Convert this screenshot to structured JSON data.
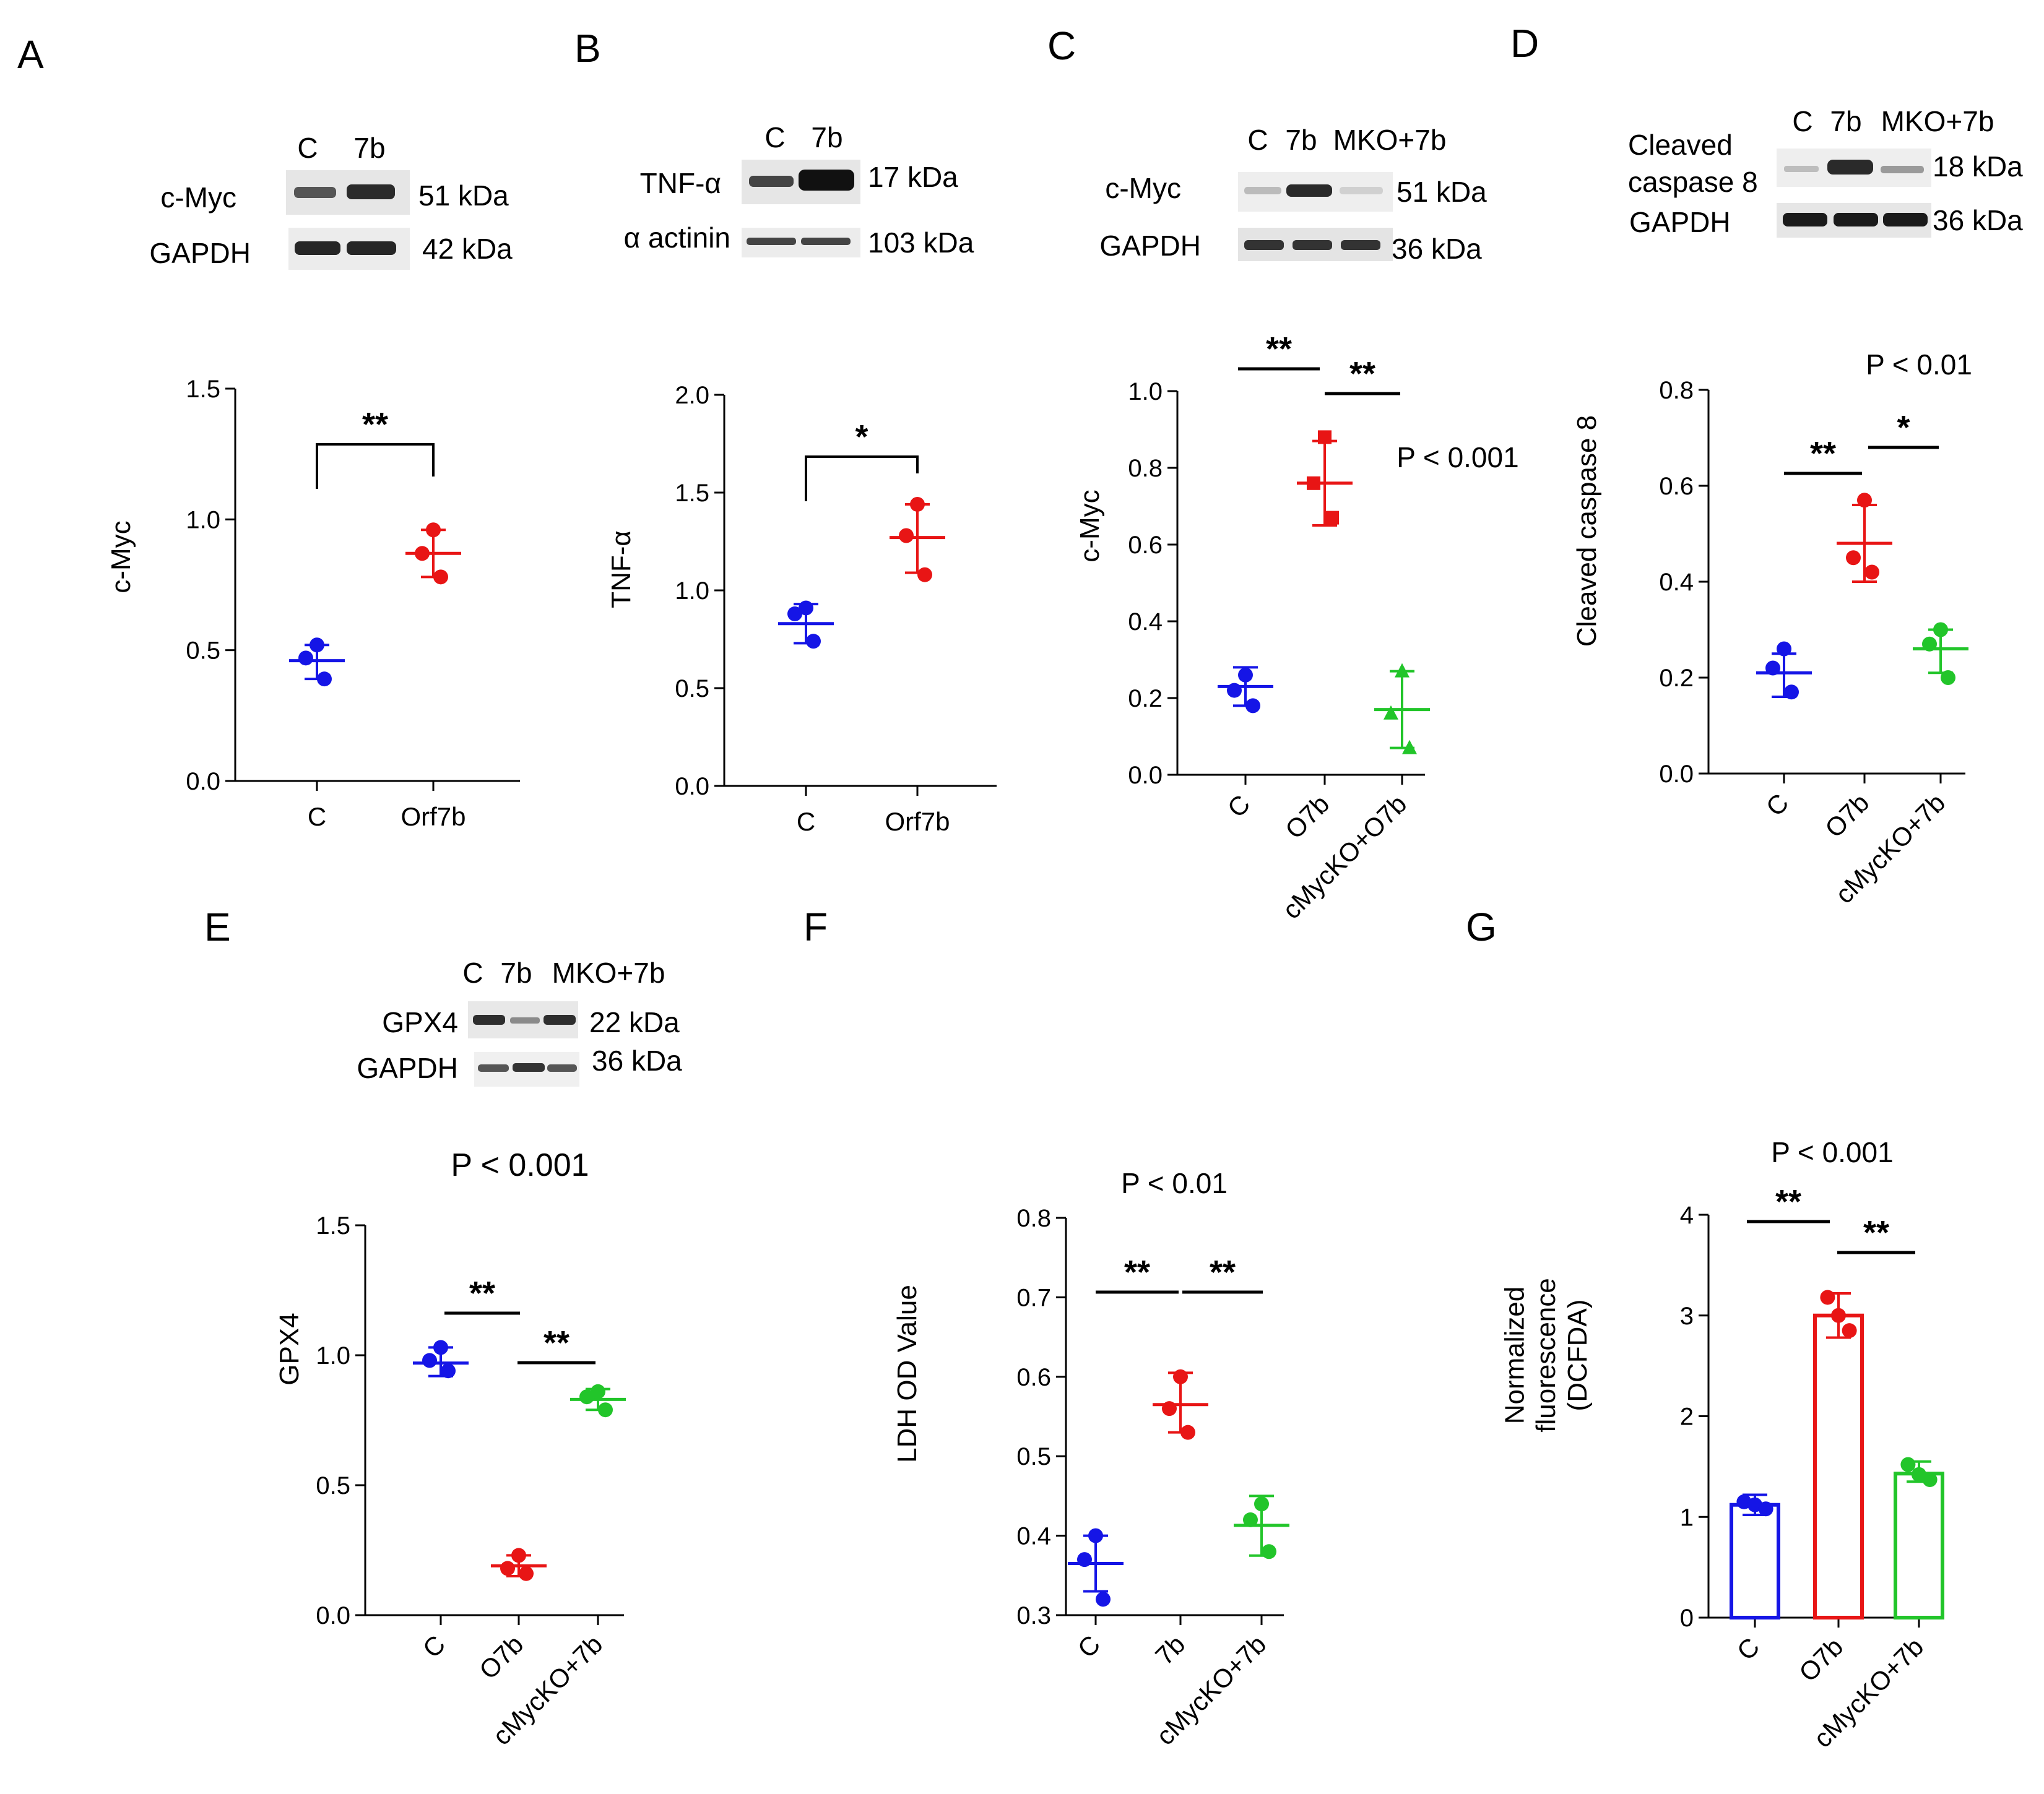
{
  "colors": {
    "C": "#1515e6",
    "Orf7b": "#e81515",
    "KO": "#22c52a",
    "axis": "#000000"
  },
  "panel_labels": [
    "A",
    "B",
    "C",
    "D",
    "E",
    "F",
    "G"
  ],
  "blots": {
    "A": {
      "lanes": [
        "C",
        "7b"
      ],
      "rows": [
        {
          "protein": "c-Myc",
          "kda": "51 kDa"
        },
        {
          "protein": "GAPDH",
          "kda": "42 kDa"
        }
      ]
    },
    "B": {
      "lanes": [
        "C",
        "7b"
      ],
      "rows": [
        {
          "protein": "TNF-α",
          "kda": "17 kDa"
        },
        {
          "protein": "α actinin",
          "kda": "103 kDa"
        }
      ]
    },
    "C": {
      "lanes": [
        "C",
        "7b",
        "MKO+7b"
      ],
      "rows": [
        {
          "protein": "c-Myc",
          "kda": "51 kDa"
        },
        {
          "protein": "GAPDH",
          "kda": "36 kDa"
        }
      ]
    },
    "D": {
      "lanes": [
        "C",
        "7b",
        "MKO+7b"
      ],
      "rows": [
        {
          "protein": "Cleaved caspase 8",
          "protein_lines": [
            "Cleaved",
            "caspase 8"
          ],
          "kda": "18 kDa"
        },
        {
          "protein": "GAPDH",
          "kda": "36 kDa"
        }
      ]
    },
    "E": {
      "lanes": [
        "C",
        "7b",
        "MKO+7b"
      ],
      "rows": [
        {
          "protein": "GPX4",
          "kda": "22 kDa"
        },
        {
          "protein": "GAPDH",
          "kda": "36 kDa"
        }
      ]
    }
  },
  "chart_data": [
    {
      "panel": "A",
      "type": "scatter",
      "ylabel": "c-Myc",
      "ylim": [
        0,
        1.5
      ],
      "yticks": [
        "0.0",
        "0.5",
        "1.0",
        "1.5"
      ],
      "categories": [
        "C",
        "Orf7b"
      ],
      "rotate_labels": false,
      "groups": [
        {
          "name": "C",
          "points": [
            0.52,
            0.47,
            0.39
          ],
          "mean": 0.46,
          "sd_low": 0.39,
          "sd_high": 0.52
        },
        {
          "name": "Orf7b",
          "points": [
            0.96,
            0.87,
            0.78
          ],
          "mean": 0.87,
          "sd_low": 0.78,
          "sd_high": 0.96
        }
      ],
      "significance": [
        {
          "label": "**",
          "bracket": true
        }
      ]
    },
    {
      "panel": "B",
      "type": "scatter",
      "ylabel": "TNF-α",
      "ylim": [
        0,
        2.0
      ],
      "yticks": [
        "0.0",
        "0.5",
        "1.0",
        "1.5",
        "2.0"
      ],
      "categories": [
        "C",
        "Orf7b"
      ],
      "rotate_labels": false,
      "groups": [
        {
          "name": "C",
          "points": [
            0.91,
            0.88,
            0.74
          ],
          "mean": 0.83,
          "sd_low": 0.73,
          "sd_high": 0.93
        },
        {
          "name": "Orf7b",
          "points": [
            1.44,
            1.28,
            1.08
          ],
          "mean": 1.27,
          "sd_low": 1.09,
          "sd_high": 1.44
        }
      ],
      "significance": [
        {
          "label": "*",
          "bracket": true
        }
      ]
    },
    {
      "panel": "C",
      "type": "scatter",
      "ylabel": "c-Myc",
      "ylim": [
        0,
        1.0
      ],
      "yticks": [
        "0.0",
        "0.2",
        "0.4",
        "0.6",
        "0.8",
        "1.0"
      ],
      "categories": [
        "C",
        "O7b",
        "cMycKO+O7b"
      ],
      "rotate_labels": true,
      "ptext": "P < 0.001",
      "groups": [
        {
          "name": "C",
          "points": [
            0.26,
            0.22,
            0.18
          ],
          "mean": 0.23,
          "sd_low": 0.18,
          "sd_high": 0.28
        },
        {
          "name": "O7b",
          "points": [
            0.88,
            0.76,
            0.67
          ],
          "mean": 0.76,
          "sd_low": 0.65,
          "sd_high": 0.87
        },
        {
          "name": "cMycKO+O7b",
          "points": [
            0.27,
            0.16,
            0.07
          ],
          "mean": 0.17,
          "sd_low": 0.07,
          "sd_high": 0.27
        }
      ],
      "significance": [
        {
          "label": "**"
        },
        {
          "label": "**"
        }
      ]
    },
    {
      "panel": "D",
      "type": "scatter",
      "ylabel": "Cleaved caspase 8",
      "ylim": [
        0,
        0.8
      ],
      "yticks": [
        "0.0",
        "0.2",
        "0.4",
        "0.6",
        "0.8"
      ],
      "categories": [
        "C",
        "O7b",
        "cMycKO+7b"
      ],
      "rotate_labels": true,
      "ptext": "P < 0.01",
      "groups": [
        {
          "name": "C",
          "points": [
            0.26,
            0.22,
            0.17
          ],
          "mean": 0.21,
          "sd_low": 0.16,
          "sd_high": 0.25
        },
        {
          "name": "O7b",
          "points": [
            0.57,
            0.45,
            0.42
          ],
          "mean": 0.48,
          "sd_low": 0.4,
          "sd_high": 0.56
        },
        {
          "name": "cMycKO+7b",
          "points": [
            0.3,
            0.27,
            0.2
          ],
          "mean": 0.26,
          "sd_low": 0.21,
          "sd_high": 0.3
        }
      ],
      "significance": [
        {
          "label": "**"
        },
        {
          "label": "*"
        }
      ]
    },
    {
      "panel": "E",
      "type": "scatter",
      "ylabel": "GPX4",
      "ylim": [
        0,
        1.5
      ],
      "yticks": [
        "0.0",
        "0.5",
        "1.0",
        "1.5"
      ],
      "categories": [
        "C",
        "O7b",
        "cMycKO+7b"
      ],
      "rotate_labels": true,
      "ptext": "P < 0.001",
      "groups": [
        {
          "name": "C",
          "points": [
            1.03,
            0.98,
            0.94
          ],
          "mean": 0.97,
          "sd_low": 0.92,
          "sd_high": 1.03
        },
        {
          "name": "O7b",
          "points": [
            0.23,
            0.18,
            0.16
          ],
          "mean": 0.19,
          "sd_low": 0.15,
          "sd_high": 0.23
        },
        {
          "name": "cMycKO+7b",
          "points": [
            0.86,
            0.84,
            0.79
          ],
          "mean": 0.83,
          "sd_low": 0.79,
          "sd_high": 0.87
        }
      ],
      "significance": [
        {
          "label": "**"
        },
        {
          "label": "**"
        }
      ]
    },
    {
      "panel": "F",
      "type": "scatter",
      "ylabel": "LDH OD Value",
      "ylim": [
        0.3,
        0.8
      ],
      "yticks": [
        "0.3",
        "0.4",
        "0.5",
        "0.6",
        "0.7",
        "0.8"
      ],
      "categories": [
        "C",
        "7b",
        "cMycKO+7b"
      ],
      "rotate_labels": true,
      "ptext": "P < 0.01",
      "groups": [
        {
          "name": "C",
          "points": [
            0.4,
            0.37,
            0.32
          ],
          "mean": 0.365,
          "sd_low": 0.33,
          "sd_high": 0.4
        },
        {
          "name": "7b",
          "points": [
            0.6,
            0.56,
            0.53
          ],
          "mean": 0.565,
          "sd_low": 0.53,
          "sd_high": 0.605
        },
        {
          "name": "cMycKO+7b",
          "points": [
            0.44,
            0.42,
            0.38
          ],
          "mean": 0.413,
          "sd_low": 0.375,
          "sd_high": 0.45
        }
      ],
      "significance": [
        {
          "label": "**"
        },
        {
          "label": "**"
        }
      ]
    },
    {
      "panel": "G",
      "type": "bar",
      "ylabel": "Normalized fluorescence (DCFDA)",
      "ylabel_lines": [
        "Normalized",
        "fluorescence",
        "(DCFDA)"
      ],
      "ylim": [
        0,
        4
      ],
      "yticks": [
        "0",
        "1",
        "2",
        "3",
        "4"
      ],
      "categories": [
        "C",
        "O7b",
        "cMycKO+7b"
      ],
      "rotate_labels": true,
      "ptext": "P < 0.001",
      "groups": [
        {
          "name": "C",
          "points": [
            1.15,
            1.12,
            1.08
          ],
          "mean": 1.12,
          "sd_low": 1.02,
          "sd_high": 1.22
        },
        {
          "name": "O7b",
          "points": [
            3.18,
            3.0,
            2.85
          ],
          "mean": 3.0,
          "sd_low": 2.78,
          "sd_high": 3.22
        },
        {
          "name": "cMycKO+7b",
          "points": [
            1.52,
            1.42,
            1.37
          ],
          "mean": 1.43,
          "sd_low": 1.35,
          "sd_high": 1.55
        }
      ],
      "significance": [
        {
          "label": "**"
        },
        {
          "label": "**"
        }
      ]
    }
  ]
}
